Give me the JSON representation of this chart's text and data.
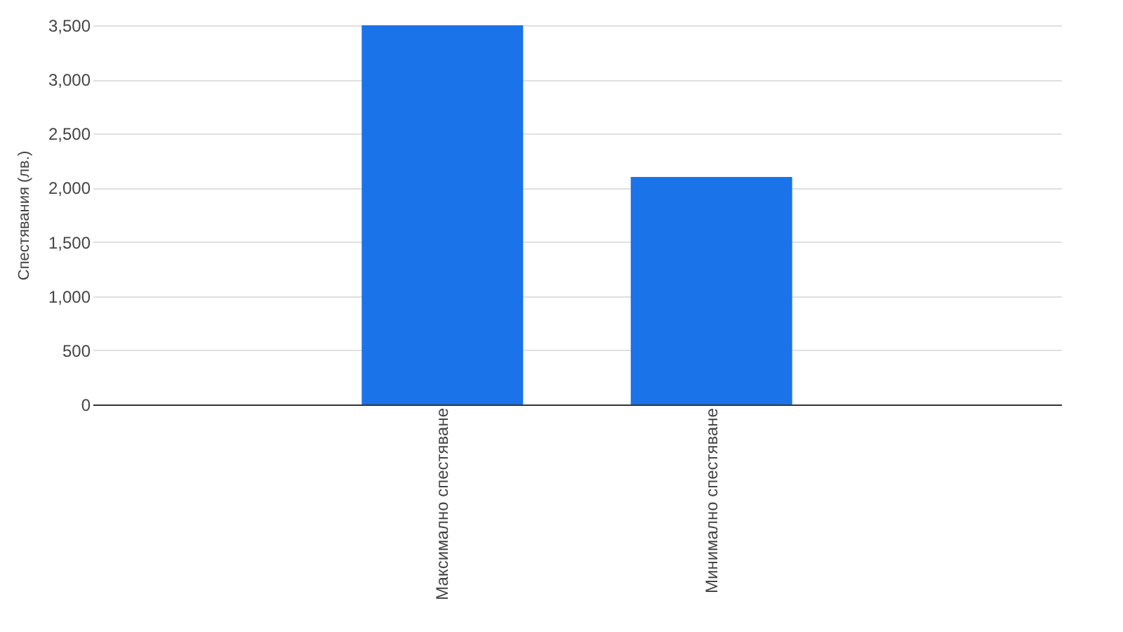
{
  "chart_data": {
    "type": "bar",
    "ylabel": "Спестявания (лв.)",
    "categories": [
      "Максимално спестяване",
      "Минимално спестяване"
    ],
    "values": [
      3500,
      2100
    ],
    "color": "#1a73e8",
    "ylim": [
      0,
      3500
    ],
    "yticks": [
      0,
      500,
      {
        "value": 1000,
        "label": "1,000"
      },
      {
        "value": 1500,
        "label": "1,500"
      },
      {
        "value": 2000,
        "label": "2,000"
      },
      {
        "value": 2500,
        "label": "2,500"
      },
      {
        "value": 3000,
        "label": "3,000"
      },
      {
        "value": 3500,
        "label": "3,500"
      }
    ],
    "grid": "y"
  }
}
